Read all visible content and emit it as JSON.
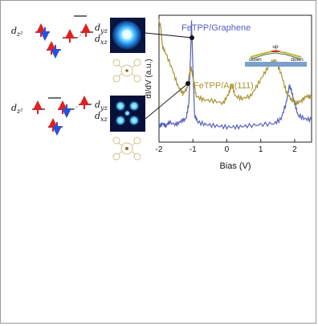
{
  "figure": {
    "orbitals": {
      "top": {
        "left": "d_{z^2}",
        "right1": "d_{yz}",
        "right2": "d_{xz}"
      },
      "bottom": {
        "left": "d_{z^2}",
        "right1": "d_{yz}",
        "right2": "d_{xz}"
      }
    },
    "inset": {
      "up": "up",
      "down_left": "down",
      "down_right": "down"
    },
    "colors": {
      "graphene": "#5560bb",
      "au": "#a89230",
      "inset_bar": "#7aa0cc"
    }
  },
  "chart_data": {
    "type": "line",
    "xlabel": "Bias (V)",
    "ylabel": "dI/dV (a.u.)",
    "xlim": [
      -2.0,
      2.5
    ],
    "xticks": [
      -2,
      -1,
      0,
      1,
      2
    ],
    "xtick_labels": [
      "-2",
      "-1",
      "0",
      "1",
      "2"
    ],
    "grid": false,
    "series": [
      {
        "name": "FeTPP/Graphene",
        "color": "#5560bb",
        "points": [
          [
            -2.0,
            0.1
          ],
          [
            -1.9,
            0.13
          ],
          [
            -1.8,
            0.11
          ],
          [
            -1.7,
            0.14
          ],
          [
            -1.5,
            0.12
          ],
          [
            -1.35,
            0.15
          ],
          [
            -1.2,
            0.17
          ],
          [
            -1.12,
            0.3
          ],
          [
            -1.07,
            0.7
          ],
          [
            -1.04,
            0.98
          ],
          [
            -1.0,
            0.6
          ],
          [
            -0.95,
            0.2
          ],
          [
            -0.85,
            0.14
          ],
          [
            -0.6,
            0.12
          ],
          [
            -0.3,
            0.11
          ],
          [
            0.0,
            0.1
          ],
          [
            0.3,
            0.1
          ],
          [
            0.6,
            0.11
          ],
          [
            1.0,
            0.12
          ],
          [
            1.4,
            0.13
          ],
          [
            1.6,
            0.17
          ],
          [
            1.75,
            0.3
          ],
          [
            1.85,
            0.45
          ],
          [
            1.9,
            0.41
          ],
          [
            2.0,
            0.3
          ],
          [
            2.1,
            0.2
          ],
          [
            2.3,
            0.17
          ],
          [
            2.5,
            0.16
          ]
        ]
      },
      {
        "name": "FeTPP/Au(111)",
        "color": "#a89230",
        "points": [
          [
            -2.0,
            0.99
          ],
          [
            -1.95,
            0.95
          ],
          [
            -1.9,
            0.78
          ],
          [
            -1.8,
            0.72
          ],
          [
            -1.6,
            0.58
          ],
          [
            -1.45,
            0.45
          ],
          [
            -1.3,
            0.38
          ],
          [
            -1.18,
            0.42
          ],
          [
            -1.1,
            0.55
          ],
          [
            -1.05,
            0.6
          ],
          [
            -0.98,
            0.48
          ],
          [
            -0.9,
            0.36
          ],
          [
            -0.7,
            0.33
          ],
          [
            -0.4,
            0.32
          ],
          [
            -0.1,
            0.3
          ],
          [
            0.05,
            0.38
          ],
          [
            0.15,
            0.46
          ],
          [
            0.25,
            0.36
          ],
          [
            0.45,
            0.34
          ],
          [
            0.7,
            0.36
          ],
          [
            0.9,
            0.45
          ],
          [
            1.1,
            0.55
          ],
          [
            1.3,
            0.64
          ],
          [
            1.45,
            0.66
          ],
          [
            1.6,
            0.55
          ],
          [
            1.75,
            0.4
          ],
          [
            1.9,
            0.33
          ],
          [
            2.05,
            0.3
          ],
          [
            2.2,
            0.32
          ],
          [
            2.35,
            0.36
          ],
          [
            2.5,
            0.35
          ]
        ]
      }
    ]
  }
}
